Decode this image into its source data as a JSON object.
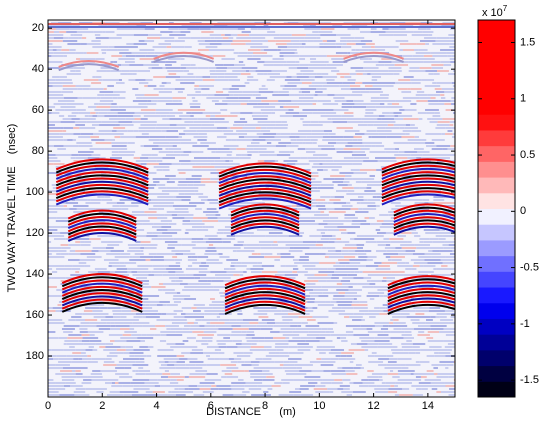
{
  "chart_data": {
    "type": "heatmap",
    "xlabel": "DISTANCE      (m)",
    "ylabel": "TWO WAY TRAVEL TIME    (nsec)",
    "xlim": [
      0,
      15
    ],
    "xticks": [
      0,
      2,
      4,
      6,
      8,
      10,
      12,
      14
    ],
    "ylim": [
      16,
      200
    ],
    "yticks": [
      20,
      40,
      60,
      80,
      100,
      120,
      140,
      160,
      180
    ],
    "y_reversed": true,
    "colorbar": {
      "lim": [
        -1.65,
        1.7
      ],
      "ticks": [
        -1.5,
        -1,
        -0.5,
        0,
        0.5,
        1,
        1.5
      ],
      "scale_label": "x 10",
      "scale_exponent": "7"
    }
  }
}
